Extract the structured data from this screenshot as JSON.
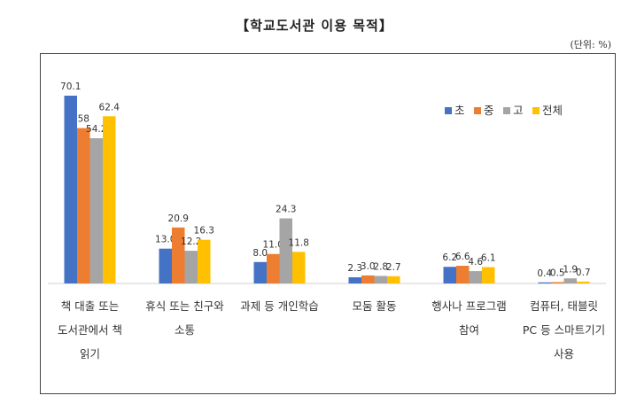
{
  "title": "【학교도서관 이용 목적】",
  "unit_note": "(단위: %)",
  "chart_data": {
    "type": "bar",
    "title": "【학교도서관 이용 목적】",
    "categories": [
      [
        "책 대출 또는",
        "도서관에서 책",
        "읽기"
      ],
      [
        "휴식 또는 친구와",
        "소통"
      ],
      [
        "과제 등 개인학습"
      ],
      [
        "모둠 활동"
      ],
      [
        "행사나 프로그램",
        "참여"
      ],
      [
        "컴퓨터, 태블릿",
        "PC 등 스마트기기",
        "사용"
      ]
    ],
    "series": [
      {
        "name": "초",
        "color": "#4472C4",
        "values": [
          70.1,
          13.0,
          8.0,
          2.3,
          6.2,
          0.4
        ],
        "labels": [
          "70.1",
          "13.0",
          "8.0",
          "2.3",
          "6.2",
          "0.4"
        ]
      },
      {
        "name": "중",
        "color": "#ED7D31",
        "values": [
          58,
          20.9,
          11.0,
          3.0,
          6.6,
          0.5
        ],
        "labels": [
          "58",
          "20.9",
          "11.0",
          "3.0",
          "6.6",
          "0.5"
        ]
      },
      {
        "name": "고",
        "color": "#A5A5A5",
        "values": [
          54.2,
          12.2,
          24.3,
          2.8,
          4.6,
          1.9
        ],
        "labels": [
          "54.2",
          "12.2",
          "24.3",
          "2.8",
          "4.6",
          "1.9"
        ]
      },
      {
        "name": "전체",
        "color": "#FFC000",
        "values": [
          62.4,
          16.3,
          11.8,
          2.7,
          6.1,
          0.7
        ],
        "labels": [
          "62.4",
          "16.3",
          "11.8",
          "2.7",
          "6.1",
          "0.7"
        ]
      }
    ],
    "ylim": [
      0,
      75
    ],
    "grid": false,
    "legend": "top-right"
  }
}
